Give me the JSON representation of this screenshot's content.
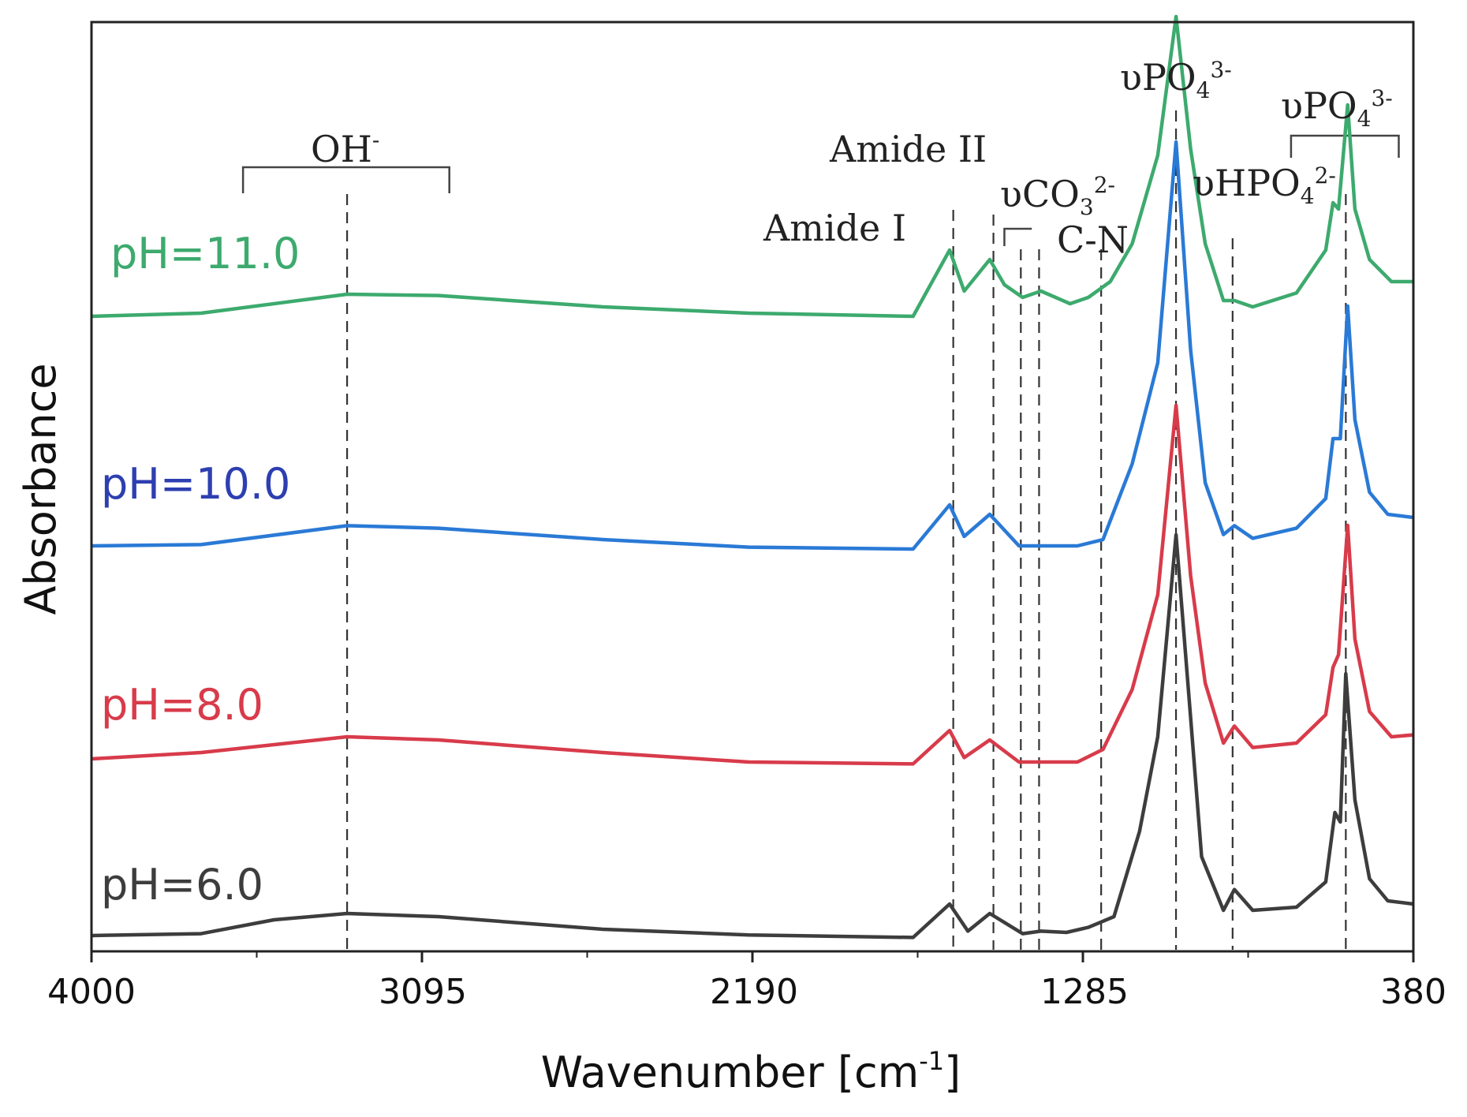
{
  "chart_data": {
    "type": "line",
    "title": "",
    "xlabel": "Wavenumber [cm",
    "xlabel_sup": "-1",
    "xlabel_close": "]",
    "ylabel": "Absorbance",
    "xlim": [
      4000,
      380
    ],
    "ylim": [
      0,
      10
    ],
    "grid": false,
    "x_ticks": [
      4000,
      3095,
      2190,
      1285,
      380
    ],
    "x_tick_labels": [
      "4000",
      "3095",
      "2190",
      "1285",
      "380"
    ],
    "series": [
      {
        "name": "pH=6.0",
        "color": "#3d3d3d",
        "points": [
          [
            4000,
            0.05
          ],
          [
            3700,
            0.08
          ],
          [
            3500,
            0.3
          ],
          [
            3300,
            0.4
          ],
          [
            3050,
            0.35
          ],
          [
            2600,
            0.15
          ],
          [
            2200,
            0.06
          ],
          [
            1750,
            0.02
          ],
          [
            1650,
            0.55
          ],
          [
            1600,
            0.12
          ],
          [
            1540,
            0.4
          ],
          [
            1450,
            0.08
          ],
          [
            1400,
            0.12
          ],
          [
            1330,
            0.1
          ],
          [
            1270,
            0.18
          ],
          [
            1200,
            0.35
          ],
          [
            1130,
            1.7
          ],
          [
            1080,
            3.2
          ],
          [
            1030,
            6.4
          ],
          [
            990,
            3.5
          ],
          [
            960,
            1.3
          ],
          [
            900,
            0.45
          ],
          [
            870,
            0.78
          ],
          [
            820,
            0.45
          ],
          [
            700,
            0.5
          ],
          [
            620,
            0.9
          ],
          [
            595,
            2.0
          ],
          [
            580,
            1.85
          ],
          [
            565,
            4.2
          ],
          [
            540,
            2.2
          ],
          [
            500,
            0.95
          ],
          [
            450,
            0.6
          ],
          [
            380,
            0.55
          ]
        ]
      },
      {
        "name": "pH=8.0",
        "color": "#d83b4a",
        "points": [
          [
            4000,
            0.1
          ],
          [
            3700,
            0.2
          ],
          [
            3300,
            0.45
          ],
          [
            3050,
            0.4
          ],
          [
            2600,
            0.2
          ],
          [
            2200,
            0.05
          ],
          [
            1750,
            0.02
          ],
          [
            1650,
            0.55
          ],
          [
            1610,
            0.12
          ],
          [
            1540,
            0.4
          ],
          [
            1460,
            0.05
          ],
          [
            1300,
            0.05
          ],
          [
            1230,
            0.25
          ],
          [
            1150,
            1.2
          ],
          [
            1080,
            2.7
          ],
          [
            1030,
            5.7
          ],
          [
            990,
            3.0
          ],
          [
            950,
            1.3
          ],
          [
            900,
            0.35
          ],
          [
            870,
            0.62
          ],
          [
            820,
            0.28
          ],
          [
            700,
            0.35
          ],
          [
            620,
            0.8
          ],
          [
            600,
            1.55
          ],
          [
            585,
            1.75
          ],
          [
            560,
            3.8
          ],
          [
            540,
            2.0
          ],
          [
            500,
            0.85
          ],
          [
            440,
            0.45
          ],
          [
            380,
            0.48
          ]
        ]
      },
      {
        "name": "pH=10.0",
        "color": "#2a7ad6",
        "points": [
          [
            4000,
            0.1
          ],
          [
            3700,
            0.12
          ],
          [
            3300,
            0.42
          ],
          [
            3050,
            0.38
          ],
          [
            2600,
            0.2
          ],
          [
            2200,
            0.08
          ],
          [
            1750,
            0.05
          ],
          [
            1650,
            0.75
          ],
          [
            1610,
            0.25
          ],
          [
            1540,
            0.6
          ],
          [
            1460,
            0.1
          ],
          [
            1300,
            0.1
          ],
          [
            1230,
            0.2
          ],
          [
            1150,
            1.4
          ],
          [
            1080,
            3.0
          ],
          [
            1030,
            6.5
          ],
          [
            990,
            3.2
          ],
          [
            950,
            1.1
          ],
          [
            900,
            0.28
          ],
          [
            870,
            0.42
          ],
          [
            820,
            0.22
          ],
          [
            700,
            0.38
          ],
          [
            620,
            0.85
          ],
          [
            600,
            1.8
          ],
          [
            580,
            1.8
          ],
          [
            560,
            3.9
          ],
          [
            540,
            2.1
          ],
          [
            500,
            0.95
          ],
          [
            450,
            0.6
          ],
          [
            380,
            0.55
          ]
        ]
      },
      {
        "name": "pH=11.0",
        "color": "#3daa6e",
        "points": [
          [
            4000,
            0.05
          ],
          [
            3700,
            0.1
          ],
          [
            3300,
            0.4
          ],
          [
            3050,
            0.38
          ],
          [
            2600,
            0.2
          ],
          [
            2200,
            0.1
          ],
          [
            1750,
            0.05
          ],
          [
            1650,
            1.1
          ],
          [
            1610,
            0.45
          ],
          [
            1540,
            0.95
          ],
          [
            1500,
            0.55
          ],
          [
            1450,
            0.35
          ],
          [
            1400,
            0.45
          ],
          [
            1320,
            0.25
          ],
          [
            1270,
            0.35
          ],
          [
            1210,
            0.6
          ],
          [
            1150,
            1.2
          ],
          [
            1080,
            2.6
          ],
          [
            1030,
            4.8
          ],
          [
            990,
            2.7
          ],
          [
            950,
            1.2
          ],
          [
            900,
            0.3
          ],
          [
            870,
            0.3
          ],
          [
            820,
            0.2
          ],
          [
            700,
            0.42
          ],
          [
            620,
            1.1
          ],
          [
            600,
            1.85
          ],
          [
            585,
            1.75
          ],
          [
            560,
            3.4
          ],
          [
            540,
            1.75
          ],
          [
            500,
            0.95
          ],
          [
            440,
            0.6
          ],
          [
            380,
            0.6
          ]
        ]
      }
    ],
    "series_labels": [
      "pH=11.0",
      "pH=10.0",
      "pH=8.0",
      "pH=6.0"
    ],
    "reference_lines_x": [
      3300,
      1640,
      1530,
      1455,
      1405,
      1235,
      1030,
      875,
      565
    ],
    "annotations": {
      "oh": "OH",
      "oh_sup": "-",
      "amide_i": "Amide I",
      "amide_ii": "Amide II",
      "co3": "υCO",
      "co3_sub": "3",
      "co3_sup": "2-",
      "cn": "C-N",
      "po4_main": "υPO",
      "po4_main_sub": "4",
      "po4_main_sup": "3-",
      "hpo4": "υHPO",
      "hpo4_sub": "4",
      "hpo4_sup": "2-",
      "po4_right": "υPO",
      "po4_right_sub": "4",
      "po4_right_sup": "3-"
    }
  }
}
